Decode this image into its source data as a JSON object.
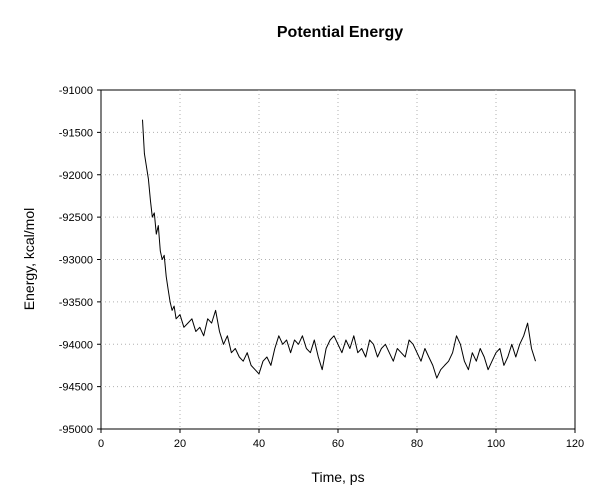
{
  "chart_data": {
    "type": "line",
    "title": "Potential Energy",
    "xlabel": "Time, ps",
    "ylabel": "Energy, kcal/mol",
    "xlim": [
      0,
      120
    ],
    "ylim": [
      -95000,
      -91000
    ],
    "xticks": [
      0,
      20,
      40,
      60,
      80,
      100,
      120
    ],
    "yticks": [
      -91000,
      -91500,
      -92000,
      -92500,
      -93000,
      -93500,
      -94000,
      -94500,
      -95000
    ],
    "grid": true,
    "legend": "none",
    "series": [
      {
        "color": "#000000",
        "x": [
          10.5,
          11,
          11.5,
          12,
          12.5,
          13,
          13.5,
          14,
          14.5,
          15,
          15.5,
          16,
          16.5,
          17,
          17.5,
          18,
          18.5,
          19,
          20,
          21,
          22,
          23,
          24,
          25,
          26,
          27,
          28,
          29,
          30,
          31,
          32,
          33,
          34,
          35,
          36,
          37,
          38,
          39,
          40,
          41,
          42,
          43,
          44,
          45,
          46,
          47,
          48,
          49,
          50,
          51,
          52,
          53,
          54,
          55,
          56,
          57,
          58,
          59,
          60,
          61,
          62,
          63,
          64,
          65,
          66,
          67,
          68,
          69,
          70,
          71,
          72,
          73,
          74,
          75,
          76,
          77,
          78,
          79,
          80,
          81,
          82,
          83,
          84,
          85,
          86,
          87,
          88,
          89,
          90,
          91,
          92,
          93,
          94,
          95,
          96,
          97,
          98,
          99,
          100,
          101,
          102,
          103,
          104,
          105,
          106,
          107,
          108,
          109,
          110
        ],
        "y": [
          -91350,
          -91750,
          -91900,
          -92050,
          -92300,
          -92500,
          -92450,
          -92700,
          -92600,
          -92900,
          -93000,
          -92950,
          -93200,
          -93350,
          -93500,
          -93600,
          -93550,
          -93700,
          -93650,
          -93800,
          -93750,
          -93700,
          -93850,
          -93800,
          -93900,
          -93700,
          -93750,
          -93600,
          -93850,
          -94000,
          -93900,
          -94100,
          -94050,
          -94150,
          -94200,
          -94100,
          -94250,
          -94300,
          -94350,
          -94200,
          -94150,
          -94250,
          -94050,
          -93900,
          -94000,
          -93950,
          -94100,
          -93950,
          -94000,
          -93900,
          -94050,
          -94100,
          -93950,
          -94150,
          -94300,
          -94050,
          -93950,
          -93900,
          -94000,
          -94100,
          -93950,
          -94050,
          -93900,
          -94100,
          -94050,
          -94150,
          -93950,
          -94000,
          -94150,
          -94050,
          -94000,
          -94100,
          -94200,
          -94050,
          -94100,
          -94150,
          -93950,
          -94000,
          -94100,
          -94200,
          -94050,
          -94150,
          -94250,
          -94400,
          -94300,
          -94250,
          -94200,
          -94100,
          -93900,
          -94000,
          -94200,
          -94300,
          -94100,
          -94200,
          -94050,
          -94150,
          -94300,
          -94200,
          -94100,
          -94050,
          -94250,
          -94150,
          -94000,
          -94150,
          -94000,
          -93900,
          -93750,
          -94050,
          -94200
        ]
      }
    ]
  }
}
